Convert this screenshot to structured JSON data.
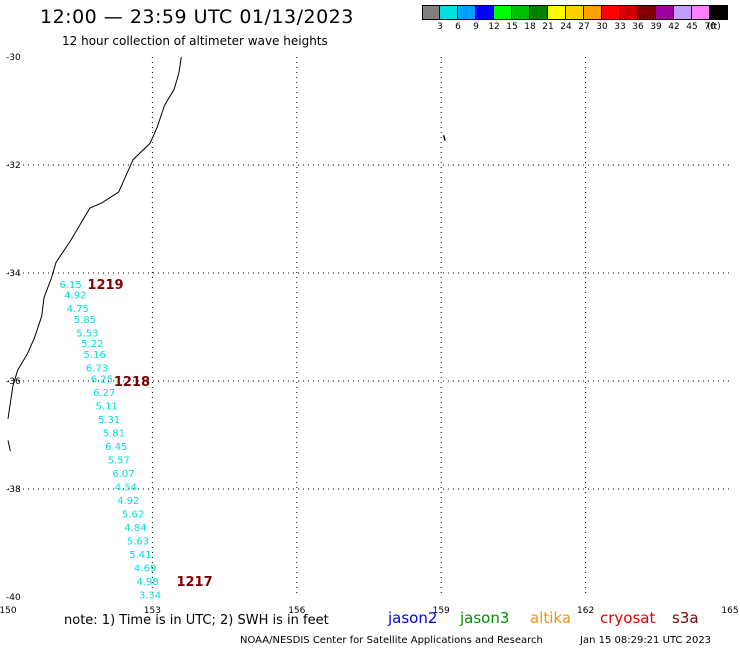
{
  "header": {
    "title": "12:00 — 23:59 UTC 01/13/2023",
    "subtitle": "12 hour collection of altimeter wave heights"
  },
  "colorbar": {
    "colors": [
      "#808080",
      "#00e0e0",
      "#00a0ff",
      "#0000ff",
      "#00ff00",
      "#00c000",
      "#008000",
      "#ffff00",
      "#ffd000",
      "#ffa000",
      "#ff0000",
      "#d00000",
      "#800000",
      "#a000a0",
      "#c0a0ff",
      "#ff80ff",
      "#000000"
    ],
    "labels": [
      "3",
      "6",
      "9",
      "12",
      "15",
      "18",
      "21",
      "24",
      "27",
      "30",
      "33",
      "36",
      "39",
      "42",
      "45",
      "70",
      "(ft)"
    ]
  },
  "chart_data": {
    "type": "scatter",
    "title": "12 hour collection of altimeter wave heights",
    "xlabel": "",
    "ylabel": "",
    "xlim": [
      150,
      165
    ],
    "ylim": [
      -40,
      -30
    ],
    "x_ticks": [
      "150",
      "153",
      "156",
      "159",
      "162",
      "165"
    ],
    "y_ticks": [
      "-30",
      "-32",
      "-34",
      "-36",
      "-38",
      "-40"
    ],
    "grid": true,
    "point_color": "#00e0e0",
    "track_label_color": "#800000",
    "points": [
      {
        "lon": 151.3,
        "lat": -34.2,
        "swh": "6.15"
      },
      {
        "lon": 151.4,
        "lat": -34.4,
        "swh": "4.92"
      },
      {
        "lon": 151.45,
        "lat": -34.65,
        "swh": "4.75"
      },
      {
        "lon": 151.6,
        "lat": -34.85,
        "swh": "5.85"
      },
      {
        "lon": 151.65,
        "lat": -35.1,
        "swh": "5.53"
      },
      {
        "lon": 151.75,
        "lat": -35.3,
        "swh": "5.22"
      },
      {
        "lon": 151.8,
        "lat": -35.5,
        "swh": "5.16"
      },
      {
        "lon": 151.85,
        "lat": -35.75,
        "swh": "6.73"
      },
      {
        "lon": 151.95,
        "lat": -35.95,
        "swh": "6.25"
      },
      {
        "lon": 152.0,
        "lat": -36.2,
        "swh": "6.27"
      },
      {
        "lon": 152.05,
        "lat": -36.45,
        "swh": "5.11"
      },
      {
        "lon": 152.1,
        "lat": -36.7,
        "swh": "5.31"
      },
      {
        "lon": 152.2,
        "lat": -36.95,
        "swh": "5.81"
      },
      {
        "lon": 152.25,
        "lat": -37.2,
        "swh": "6.45"
      },
      {
        "lon": 152.3,
        "lat": -37.45,
        "swh": "5.57"
      },
      {
        "lon": 152.4,
        "lat": -37.7,
        "swh": "6.07"
      },
      {
        "lon": 152.45,
        "lat": -37.95,
        "swh": "4.54"
      },
      {
        "lon": 152.5,
        "lat": -38.2,
        "swh": "4.92"
      },
      {
        "lon": 152.6,
        "lat": -38.45,
        "swh": "5.62"
      },
      {
        "lon": 152.65,
        "lat": -38.7,
        "swh": "4.84"
      },
      {
        "lon": 152.7,
        "lat": -38.95,
        "swh": "5.63"
      },
      {
        "lon": 152.75,
        "lat": -39.2,
        "swh": "5.41"
      },
      {
        "lon": 152.85,
        "lat": -39.45,
        "swh": "4.69"
      },
      {
        "lon": 152.9,
        "lat": -39.7,
        "swh": "4.98"
      },
      {
        "lon": 152.95,
        "lat": -39.95,
        "swh": "3.34"
      }
    ],
    "track_labels": [
      {
        "lon": 151.65,
        "lat": -34.2,
        "text": "1219"
      },
      {
        "lon": 152.2,
        "lat": -36.0,
        "text": "1218"
      },
      {
        "lon": 153.5,
        "lat": -39.7,
        "text": "1217"
      }
    ]
  },
  "footer": {
    "note": "note:  1) Time is in UTC;  2) SWH is in feet",
    "satellites": [
      {
        "name": "jason2",
        "color": "#0000e0"
      },
      {
        "name": "jason3",
        "color": "#009000"
      },
      {
        "name": "altika",
        "color": "#ff9000"
      },
      {
        "name": "cryosat",
        "color": "#e00000"
      },
      {
        "name": "s3a",
        "color": "#800000"
      }
    ],
    "credit": "NOAA/NESDIS Center for Satellite Applications and Research",
    "generated": "Jan 15 08:29:21 UTC 2023"
  }
}
